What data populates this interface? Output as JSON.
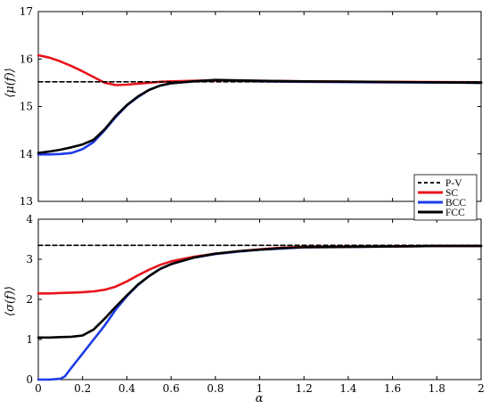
{
  "chart_data": [
    {
      "type": "line",
      "title": "",
      "xlabel": "",
      "ylabel": "⟨μ(f)⟩",
      "xlim": [
        0,
        2
      ],
      "ylim": [
        13,
        17
      ],
      "x_ticks": [
        "0",
        "0.2",
        "0.4",
        "0.6",
        "0.8",
        "1",
        "1.2",
        "1.4",
        "1.6",
        "1.8",
        "2"
      ],
      "y_ticks": [
        "13",
        "14",
        "15",
        "16",
        "17"
      ],
      "grid": false,
      "series": [
        {
          "name": "P-V",
          "color": "#000000",
          "style": "dashed",
          "x": [
            0,
            2
          ],
          "y": [
            15.52,
            15.52
          ]
        },
        {
          "name": "SC",
          "color": "#e8141b",
          "style": "solid",
          "x": [
            0,
            0.05,
            0.1,
            0.15,
            0.2,
            0.25,
            0.3,
            0.35,
            0.4,
            0.45,
            0.5,
            0.55,
            0.6,
            0.7,
            0.8,
            1.0,
            1.2,
            1.5,
            2.0
          ],
          "y": [
            16.08,
            16.03,
            15.95,
            15.85,
            15.74,
            15.62,
            15.5,
            15.45,
            15.46,
            15.48,
            15.5,
            15.52,
            15.53,
            15.54,
            15.55,
            15.54,
            15.53,
            15.52,
            15.51
          ]
        },
        {
          "name": "BCC",
          "color": "#1f3be8",
          "style": "solid",
          "x": [
            0,
            0.05,
            0.1,
            0.15,
            0.2,
            0.25,
            0.3,
            0.35,
            0.4,
            0.45,
            0.5,
            0.55,
            0.6,
            0.7,
            0.8,
            1.0,
            1.2,
            1.5,
            2.0
          ],
          "y": [
            13.99,
            13.99,
            14.0,
            14.02,
            14.1,
            14.25,
            14.5,
            14.78,
            15.02,
            15.2,
            15.35,
            15.44,
            15.49,
            15.53,
            15.55,
            15.53,
            15.52,
            15.51,
            15.5
          ]
        },
        {
          "name": "FCC",
          "color": "#000000",
          "style": "solid",
          "x": [
            0,
            0.05,
            0.1,
            0.15,
            0.2,
            0.25,
            0.3,
            0.35,
            0.4,
            0.45,
            0.5,
            0.55,
            0.6,
            0.7,
            0.8,
            1.0,
            1.2,
            1.5,
            2.0
          ],
          "y": [
            14.02,
            14.05,
            14.09,
            14.14,
            14.2,
            14.3,
            14.52,
            14.8,
            15.03,
            15.21,
            15.35,
            15.44,
            15.49,
            15.53,
            15.56,
            15.54,
            15.53,
            15.52,
            15.5
          ]
        }
      ]
    },
    {
      "type": "line",
      "title": "",
      "xlabel": "α",
      "ylabel": "⟨σ(f)⟩",
      "xlim": [
        0,
        2
      ],
      "ylim": [
        0,
        4
      ],
      "x_ticks": [
        "0",
        "0.2",
        "0.4",
        "0.6",
        "0.8",
        "1",
        "1.2",
        "1.4",
        "1.6",
        "1.8",
        "2"
      ],
      "y_ticks": [
        "0",
        "1",
        "2",
        "3",
        "4"
      ],
      "grid": false,
      "series": [
        {
          "name": "P-V",
          "color": "#000000",
          "style": "dashed",
          "x": [
            0,
            2
          ],
          "y": [
            3.35,
            3.35
          ]
        },
        {
          "name": "SC",
          "color": "#e8141b",
          "style": "solid",
          "x": [
            0,
            0.05,
            0.1,
            0.15,
            0.2,
            0.25,
            0.3,
            0.35,
            0.4,
            0.45,
            0.5,
            0.55,
            0.6,
            0.7,
            0.8,
            0.9,
            1.0,
            1.1,
            1.2,
            1.4,
            1.6,
            1.8,
            2.0
          ],
          "y": [
            2.15,
            2.15,
            2.16,
            2.17,
            2.18,
            2.2,
            2.24,
            2.32,
            2.45,
            2.6,
            2.74,
            2.86,
            2.95,
            3.06,
            3.14,
            3.2,
            3.25,
            3.29,
            3.31,
            3.32,
            3.32,
            3.33,
            3.33
          ]
        },
        {
          "name": "BCC",
          "color": "#1f3be8",
          "style": "solid",
          "x": [
            0,
            0.05,
            0.1,
            0.12,
            0.15,
            0.2,
            0.25,
            0.3,
            0.35,
            0.4,
            0.45,
            0.5,
            0.55,
            0.6,
            0.7,
            0.8,
            0.9,
            1.0,
            1.1,
            1.2,
            1.4,
            1.6,
            1.8,
            2.0
          ],
          "y": [
            0,
            0,
            0.02,
            0.08,
            0.3,
            0.65,
            1.0,
            1.35,
            1.75,
            2.08,
            2.36,
            2.58,
            2.76,
            2.88,
            3.04,
            3.13,
            3.19,
            3.24,
            3.27,
            3.3,
            3.31,
            3.32,
            3.33,
            3.33
          ]
        },
        {
          "name": "FCC",
          "color": "#000000",
          "style": "solid",
          "x": [
            0,
            0.05,
            0.1,
            0.15,
            0.2,
            0.25,
            0.3,
            0.35,
            0.4,
            0.45,
            0.5,
            0.55,
            0.6,
            0.7,
            0.8,
            0.9,
            1.0,
            1.1,
            1.2,
            1.4,
            1.6,
            1.8,
            2.0
          ],
          "y": [
            1.05,
            1.05,
            1.06,
            1.07,
            1.1,
            1.25,
            1.52,
            1.82,
            2.1,
            2.37,
            2.58,
            2.76,
            2.88,
            3.04,
            3.14,
            3.2,
            3.24,
            3.28,
            3.3,
            3.31,
            3.32,
            3.33,
            3.33
          ]
        }
      ]
    }
  ],
  "legend": {
    "placement": "right",
    "entries": [
      {
        "label": "P-V",
        "color": "#000000",
        "style": "dashed"
      },
      {
        "label": "SC",
        "color": "#e8141b",
        "style": "solid"
      },
      {
        "label": "BCC",
        "color": "#1f3be8",
        "style": "solid"
      },
      {
        "label": "FCC",
        "color": "#000000",
        "style": "solid"
      }
    ]
  }
}
